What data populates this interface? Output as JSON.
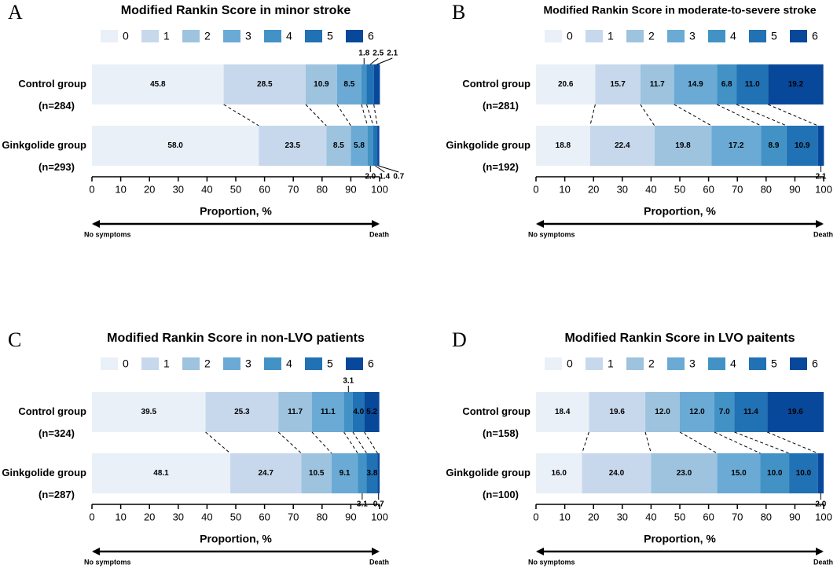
{
  "chart_data": [
    {
      "type": "bar",
      "orientation": "horizontal",
      "stacked": true,
      "panel": "A",
      "title": "Modified Rankin Score in minor stroke",
      "categories": [
        "Control group",
        "Ginkgolide group"
      ],
      "category_notes": [
        "(n=284)",
        "(n=293)"
      ],
      "xlabel": "Proportion, %",
      "xlim": [
        0,
        100
      ],
      "xticks": [
        0,
        10,
        20,
        30,
        40,
        50,
        60,
        70,
        80,
        90,
        100
      ],
      "annotations": [
        "No symptoms",
        "Death"
      ],
      "series": [
        {
          "name": "0",
          "color": "#eaf0f8",
          "values": [
            45.8,
            58.0
          ],
          "value_labels": [
            "45.8",
            "58.0"
          ]
        },
        {
          "name": "1",
          "color": "#c8d8ec",
          "values": [
            28.5,
            23.5
          ],
          "value_labels": [
            "28.5",
            "23.5"
          ]
        },
        {
          "name": "2",
          "color": "#9dc3df",
          "values": [
            10.9,
            8.5
          ],
          "value_labels": [
            "10.9",
            "8.5"
          ]
        },
        {
          "name": "3",
          "color": "#6aaad5",
          "values": [
            8.5,
            5.8
          ],
          "value_labels": [
            "8.5",
            "5.8"
          ]
        },
        {
          "name": "4",
          "color": "#4292c6",
          "values": [
            1.8,
            2.0
          ],
          "value_labels": [
            "1.8",
            "2.0"
          ]
        },
        {
          "name": "5",
          "color": "#2171b5",
          "values": [
            2.5,
            1.4
          ],
          "value_labels": [
            "2.5",
            "1.4"
          ]
        },
        {
          "name": "6",
          "color": "#08489a",
          "values": [
            2.1,
            0.7
          ],
          "value_labels": [
            "2.1",
            "0.7"
          ]
        }
      ]
    },
    {
      "type": "bar",
      "orientation": "horizontal",
      "stacked": true,
      "panel": "B",
      "title": "Modified Rankin Score in moderate-to-severe stroke",
      "categories": [
        "Control group",
        "Ginkgolide group"
      ],
      "category_notes": [
        "(n=281)",
        "(n=192)"
      ],
      "xlabel": "Proportion, %",
      "xlim": [
        0,
        100
      ],
      "xticks": [
        0,
        10,
        20,
        30,
        40,
        50,
        60,
        70,
        80,
        90,
        100
      ],
      "annotations": [
        "No symptoms",
        "Death"
      ],
      "series": [
        {
          "name": "0",
          "color": "#eaf0f8",
          "values": [
            20.6,
            18.8
          ],
          "value_labels": [
            "20.6",
            "18.8"
          ]
        },
        {
          "name": "1",
          "color": "#c8d8ec",
          "values": [
            15.7,
            22.4
          ],
          "value_labels": [
            "15.7",
            "22.4"
          ]
        },
        {
          "name": "2",
          "color": "#9dc3df",
          "values": [
            11.7,
            19.8
          ],
          "value_labels": [
            "11.7",
            "19.8"
          ]
        },
        {
          "name": "3",
          "color": "#6aaad5",
          "values": [
            14.9,
            17.2
          ],
          "value_labels": [
            "14.9",
            "17.2"
          ]
        },
        {
          "name": "4",
          "color": "#4292c6",
          "values": [
            6.8,
            8.9
          ],
          "value_labels": [
            "6.8",
            "8.9"
          ]
        },
        {
          "name": "5",
          "color": "#2171b5",
          "values": [
            11.0,
            10.9
          ],
          "value_labels": [
            "11.0",
            "10.9"
          ]
        },
        {
          "name": "6",
          "color": "#08489a",
          "values": [
            19.2,
            2.1
          ],
          "value_labels": [
            "19.2",
            "2.1"
          ]
        }
      ]
    },
    {
      "type": "bar",
      "orientation": "horizontal",
      "stacked": true,
      "panel": "C",
      "title": "Modified Rankin Score in non-LVO patients",
      "categories": [
        "Control group",
        "Ginkgolide group"
      ],
      "category_notes": [
        "(n=324)",
        "(n=287)"
      ],
      "xlabel": "Proportion, %",
      "xlim": [
        0,
        100
      ],
      "xticks": [
        0,
        10,
        20,
        30,
        40,
        50,
        60,
        70,
        80,
        90,
        100
      ],
      "annotations": [
        "No symptoms",
        "Death"
      ],
      "series": [
        {
          "name": "0",
          "color": "#eaf0f8",
          "values": [
            39.5,
            48.1
          ],
          "value_labels": [
            "39.5",
            "48.1"
          ]
        },
        {
          "name": "1",
          "color": "#c8d8ec",
          "values": [
            25.3,
            24.7
          ],
          "value_labels": [
            "25.3",
            "24.7"
          ]
        },
        {
          "name": "2",
          "color": "#9dc3df",
          "values": [
            11.7,
            10.5
          ],
          "value_labels": [
            "11.7",
            "10.5"
          ]
        },
        {
          "name": "3",
          "color": "#6aaad5",
          "values": [
            11.1,
            9.1
          ],
          "value_labels": [
            "11.1",
            "9.1"
          ]
        },
        {
          "name": "4",
          "color": "#4292c6",
          "values": [
            3.1,
            3.1
          ],
          "value_labels": [
            "3.1",
            "3.1"
          ]
        },
        {
          "name": "5",
          "color": "#2171b5",
          "values": [
            4.0,
            3.8
          ],
          "value_labels": [
            "4.0",
            "3.8"
          ]
        },
        {
          "name": "6",
          "color": "#08489a",
          "values": [
            5.2,
            0.7
          ],
          "value_labels": [
            "5.2",
            "0.7"
          ]
        }
      ]
    },
    {
      "type": "bar",
      "orientation": "horizontal",
      "stacked": true,
      "panel": "D",
      "title": "Modified Rankin Score in LVO paitents",
      "categories": [
        "Control group",
        "Ginkgolide group"
      ],
      "category_notes": [
        "(n=158)",
        "(n=100)"
      ],
      "xlabel": "Proportion, %",
      "xlim": [
        0,
        100
      ],
      "xticks": [
        0,
        10,
        20,
        30,
        40,
        50,
        60,
        70,
        80,
        90,
        100
      ],
      "annotations": [
        "No symptoms",
        "Death"
      ],
      "series": [
        {
          "name": "0",
          "color": "#eaf0f8",
          "values": [
            18.4,
            16.0
          ],
          "value_labels": [
            "18.4",
            "16.0"
          ]
        },
        {
          "name": "1",
          "color": "#c8d8ec",
          "values": [
            19.6,
            24.0
          ],
          "value_labels": [
            "19.6",
            "24.0"
          ]
        },
        {
          "name": "2",
          "color": "#9dc3df",
          "values": [
            12.0,
            23.0
          ],
          "value_labels": [
            "12.0",
            "23.0"
          ]
        },
        {
          "name": "3",
          "color": "#6aaad5",
          "values": [
            12.0,
            15.0
          ],
          "value_labels": [
            "12.0",
            "15.0"
          ]
        },
        {
          "name": "4",
          "color": "#4292c6",
          "values": [
            7.0,
            10.0
          ],
          "value_labels": [
            "7.0",
            "10.0"
          ]
        },
        {
          "name": "5",
          "color": "#2171b5",
          "values": [
            11.4,
            10.0
          ],
          "value_labels": [
            "11.4",
            "10.0"
          ]
        },
        {
          "name": "6",
          "color": "#08489a",
          "values": [
            19.6,
            2.0
          ],
          "value_labels": [
            "19.6",
            "2.0"
          ]
        }
      ]
    }
  ]
}
